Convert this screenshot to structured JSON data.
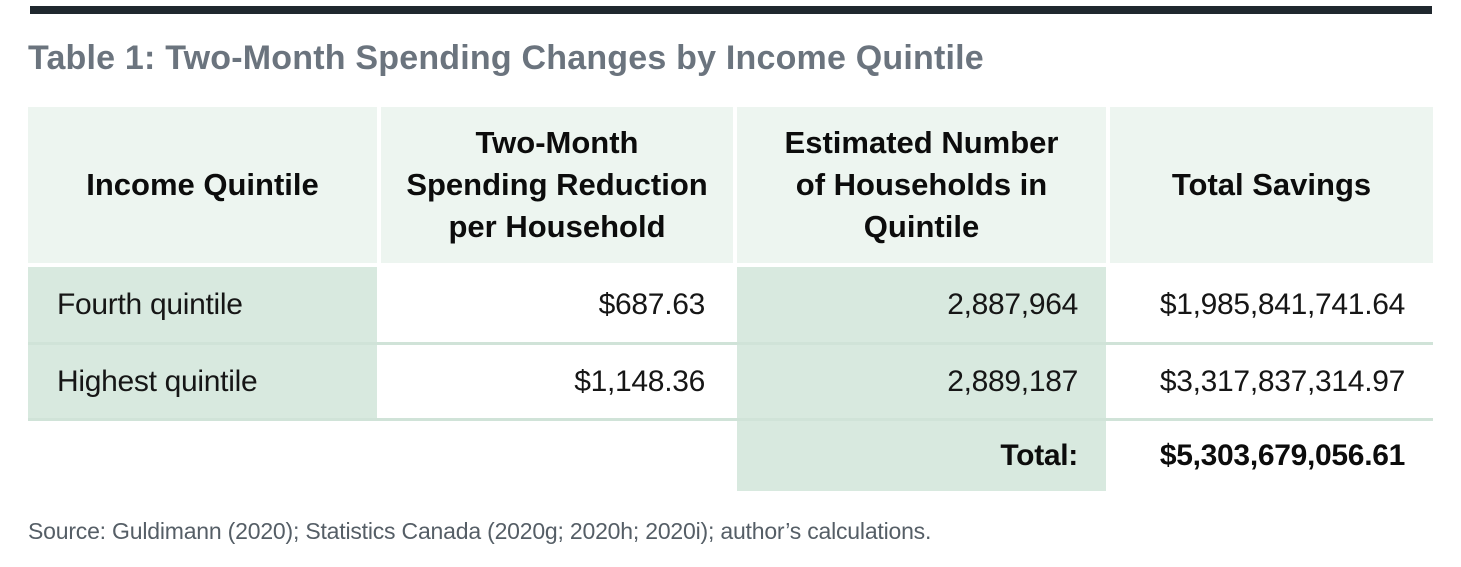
{
  "title": "Table 1: Two-Month Spending Changes by Income Quintile",
  "table": {
    "headers": [
      "Income Quintile",
      "Two-Month\nSpending Reduction\nper Household",
      "Estimated Number\nof Households in\nQuintile",
      "Total Savings"
    ],
    "rows": [
      [
        "Fourth quintile",
        "$687.63",
        "2,887,964",
        "$1,985,841,741.64"
      ],
      [
        "Highest quintile",
        "$1,148.36",
        "2,889,187",
        "$3,317,837,314.97"
      ]
    ],
    "total_label": "Total:",
    "total_value": "$5,303,679,056.61"
  },
  "source": "Source: Guldimann (2020); Statistics Canada (2020g; 2020h; 2020i); author’s calculations.",
  "colors": {
    "header_cell_green": "#edf5f0",
    "data_cell_green": "#d8e9df",
    "row_separator": "#d0e3d8",
    "title_gray": "#6b747e",
    "source_gray": "#555e66",
    "top_rule_dark": "#20282e"
  },
  "chart_data": {
    "type": "table",
    "title": "Table 1: Two-Month Spending Changes by Income Quintile",
    "columns": [
      "Income Quintile",
      "Two-Month Spending Reduction per Household",
      "Estimated Number of Households in Quintile",
      "Total Savings"
    ],
    "rows": [
      [
        "Fourth quintile",
        687.63,
        2887964,
        1985841741.64
      ],
      [
        "Highest quintile",
        1148.36,
        2889187,
        3317837314.97
      ]
    ],
    "total_savings_sum": 5303679056.61,
    "source": "Guldimann (2020); Statistics Canada (2020g; 2020h; 2020i); author’s calculations."
  }
}
